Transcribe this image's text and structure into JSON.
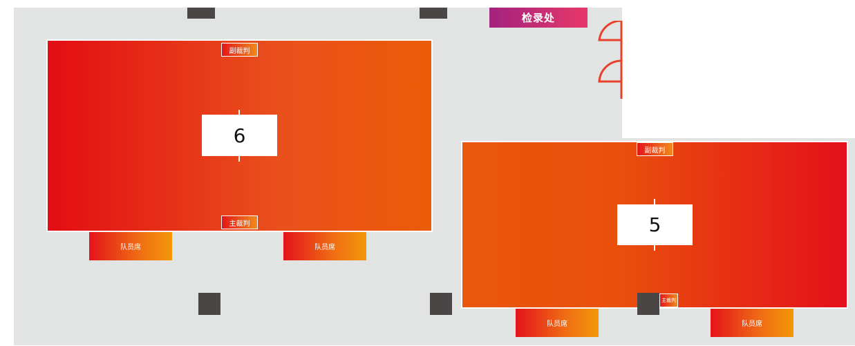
{
  "checkin": {
    "label": "检录处"
  },
  "courts": [
    {
      "number": "6",
      "assistant_referee": "副裁判",
      "main_referee": "主裁判",
      "benches": [
        "队员席",
        "队员席"
      ]
    },
    {
      "number": "5",
      "assistant_referee": "副裁判",
      "main_referee": "主裁判",
      "benches": [
        "队员席",
        "队员席"
      ]
    }
  ],
  "colors": {
    "floor": "#e2e3e3",
    "pillar": "#4a4646",
    "court_red": "#e30d13",
    "court_orange": "#ea5c07",
    "door": "#e8402a",
    "checkin_start": "#a2237e",
    "checkin_end": "#e8386a"
  }
}
